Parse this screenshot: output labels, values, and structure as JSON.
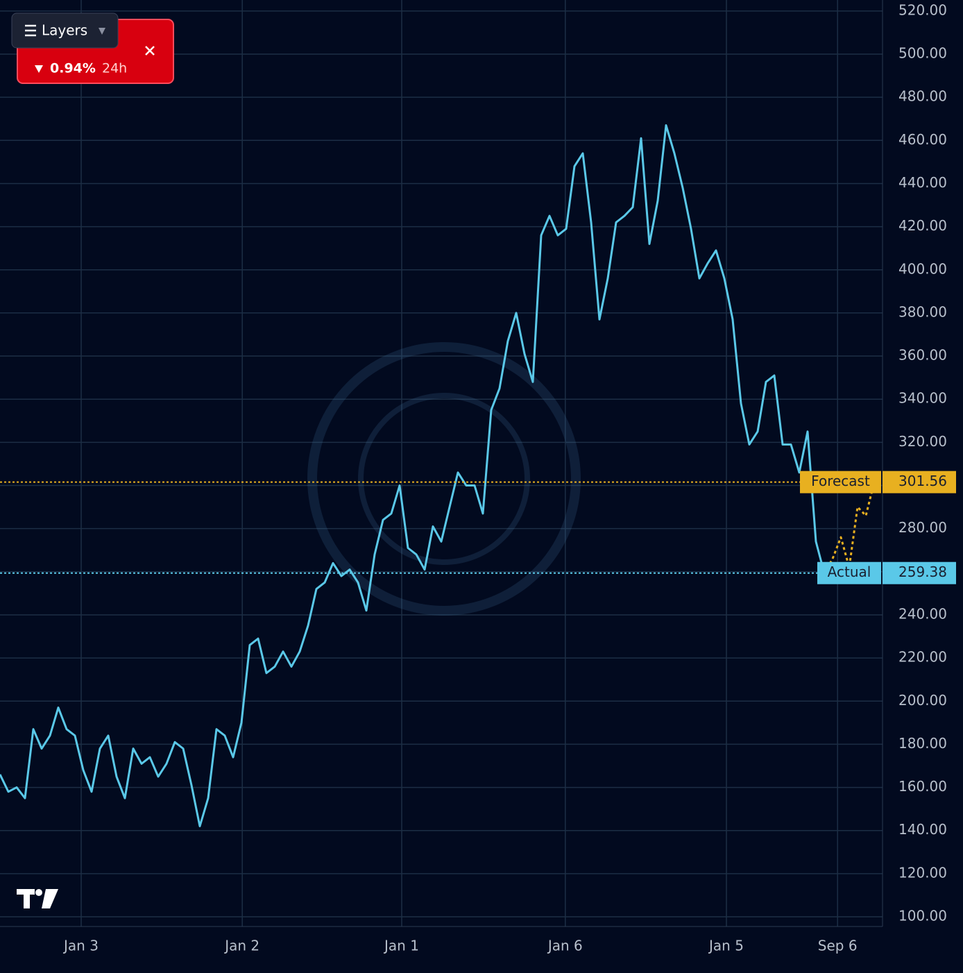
{
  "chart_data": {
    "type": "line",
    "series": [
      {
        "name": "Actual",
        "color": "#5ac8e8",
        "x": [
          0,
          1,
          2,
          3,
          4,
          5,
          6,
          7,
          8,
          9,
          10,
          11,
          12,
          13,
          14,
          15,
          16,
          17,
          18,
          19,
          20,
          21,
          22,
          23,
          24,
          25,
          26,
          27,
          28,
          29,
          30,
          31,
          32,
          33,
          34,
          35,
          36,
          37,
          38,
          39,
          40,
          41,
          42,
          43,
          44,
          45,
          46,
          47,
          48,
          49,
          50,
          51,
          52,
          53,
          54,
          55,
          56,
          57,
          58,
          59,
          60,
          61,
          62,
          63,
          64,
          65,
          66,
          67,
          68,
          69,
          70,
          71,
          72,
          73,
          74,
          75,
          76,
          77,
          78,
          79,
          80,
          81,
          82,
          83,
          84,
          85,
          86,
          87,
          88,
          89,
          90,
          91,
          92,
          93,
          94,
          95,
          96,
          97,
          98,
          99
        ],
        "values": [
          166,
          158,
          160,
          155,
          187,
          178,
          184,
          197,
          187,
          184,
          168,
          158,
          178,
          184,
          165,
          155,
          178,
          171,
          174,
          165,
          171,
          181,
          178,
          161,
          142,
          155,
          187,
          184,
          174,
          190,
          226,
          229,
          213,
          216,
          223,
          216,
          223,
          235,
          252,
          255,
          264,
          258,
          261,
          255,
          242,
          268,
          284,
          287,
          300,
          271,
          268,
          261,
          281,
          274,
          290,
          306,
          300,
          300,
          287,
          335,
          345,
          367,
          380,
          361,
          348,
          416,
          425,
          416,
          419,
          448,
          454,
          422,
          377,
          396,
          422,
          425,
          429,
          461,
          412,
          432,
          467,
          454,
          438,
          419,
          396,
          403,
          409,
          396,
          377,
          338,
          319,
          325,
          348,
          351,
          319,
          319,
          306,
          325,
          274,
          259.38
        ]
      },
      {
        "name": "Forecast",
        "color": "#e8b020",
        "dashed": true,
        "x": [
          99,
          100,
          101,
          102,
          103,
          104,
          105
        ],
        "values": [
          259.38,
          266,
          276,
          262,
          290,
          286,
          301.56
        ]
      }
    ],
    "price_lines": [
      {
        "name": "Forecast",
        "value": 301.56,
        "color": "#e8b020"
      },
      {
        "name": "Actual",
        "value": 259.38,
        "color": "#5ac8e8"
      }
    ],
    "xlim": [
      0,
      106
    ],
    "xticks": [
      {
        "value": 9.75,
        "label": "Jan 3"
      },
      {
        "value": 29.1,
        "label": "Jan 2"
      },
      {
        "value": 48.25,
        "label": "Jan 1"
      },
      {
        "value": 67.9,
        "label": "Jan 6"
      },
      {
        "value": 87.25,
        "label": "Jan 5"
      },
      {
        "value": 100.6,
        "label": "Sep 6"
      }
    ],
    "ylim": [
      95.5,
      525.1
    ],
    "yticks": [
      {
        "value": 100,
        "label": "100.00"
      },
      {
        "value": 120,
        "label": "120.00"
      },
      {
        "value": 140,
        "label": "140.00"
      },
      {
        "value": 160,
        "label": "160.00"
      },
      {
        "value": 180,
        "label": "180.00"
      },
      {
        "value": 200,
        "label": "200.00"
      },
      {
        "value": 220,
        "label": "220.00"
      },
      {
        "value": 240,
        "label": "240.00"
      },
      {
        "value": 260,
        "label": "260.00"
      },
      {
        "value": 280,
        "label": "280.00"
      },
      {
        "value": 300,
        "label": "300.00"
      },
      {
        "value": 320,
        "label": "320.00"
      },
      {
        "value": 340,
        "label": "340.00"
      },
      {
        "value": 360,
        "label": "360.00"
      },
      {
        "value": 380,
        "label": "380.00"
      },
      {
        "value": 400,
        "label": "400.00"
      },
      {
        "value": 420,
        "label": "420.00"
      },
      {
        "value": 440,
        "label": "440.00"
      },
      {
        "value": 460,
        "label": "460.00"
      },
      {
        "value": 480,
        "label": "480.00"
      },
      {
        "value": 500,
        "label": "500.00"
      },
      {
        "value": 520,
        "label": "520.00"
      }
    ],
    "grid": true
  },
  "widget": {
    "button": "Layers",
    "change": "0.94%",
    "period": "24h"
  }
}
